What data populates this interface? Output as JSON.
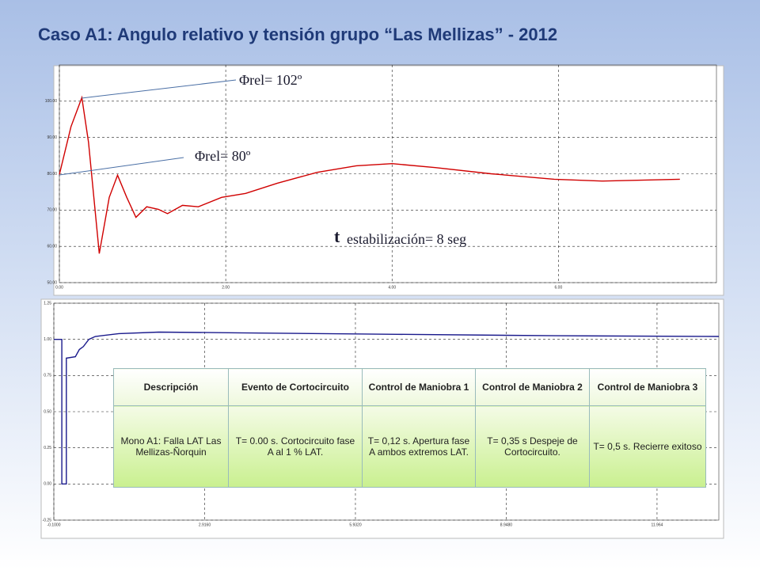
{
  "title": "Caso A1: Angulo relativo y tensión grupo “Las Mellizas” - 2012",
  "chart_data": [
    {
      "type": "line",
      "color": "#d00000",
      "grid": true,
      "x": [
        0,
        0.14,
        0.27,
        0.35,
        0.48,
        0.6,
        0.7,
        0.81,
        0.92,
        1.05,
        1.19,
        1.3,
        1.48,
        1.67,
        1.95,
        2.24,
        2.62,
        3.1,
        3.57,
        4.0,
        4.52,
        5.19,
        5.95,
        6.52,
        7.46
      ],
      "values": [
        79.8,
        93,
        101,
        88.7,
        58,
        73.5,
        79.6,
        73.5,
        68,
        70.9,
        70.2,
        69,
        71.3,
        70.9,
        73.5,
        74.6,
        77.4,
        80.4,
        82.2,
        82.8,
        81.7,
        80,
        78.5,
        78,
        78.5
      ],
      "xlim": [
        0,
        7.9
      ],
      "xticks": [
        {
          "value": 0,
          "label": "0.00"
        },
        {
          "value": 2,
          "label": "2.00"
        },
        {
          "value": 4,
          "label": "4.00"
        },
        {
          "value": 6,
          "label": "6.00"
        }
      ],
      "ylim": [
        50,
        110
      ],
      "yticks": [
        {
          "value": 50,
          "label": "50.00"
        },
        {
          "value": 60,
          "label": "60.00"
        },
        {
          "value": 70,
          "label": "70.00"
        },
        {
          "value": 80,
          "label": "80.00"
        },
        {
          "value": 90,
          "label": "90.00"
        },
        {
          "value": 100,
          "label": "100.00"
        }
      ]
    },
    {
      "type": "line",
      "color": "#1a1a8c",
      "grid": true,
      "x": [
        -0.1,
        0.06,
        0.06,
        0.15,
        0.15,
        0.33,
        0.41,
        0.49,
        0.6,
        0.73,
        1.2,
        2.0,
        3.58,
        6.76,
        9.93,
        13.2
      ],
      "values": [
        1.0,
        1.0,
        0.0,
        0.0,
        0.87,
        0.88,
        0.93,
        0.95,
        1.0,
        1.02,
        1.04,
        1.05,
        1.045,
        1.035,
        1.025,
        1.02
      ],
      "xlim": [
        -0.1,
        13.2
      ],
      "xticks": [
        {
          "value": -0.1,
          "label": "-0.1000"
        },
        {
          "value": 2.916,
          "label": "2.9160"
        },
        {
          "value": 5.932,
          "label": "5.9320"
        },
        {
          "value": 8.948,
          "label": "8.9480"
        },
        11.964
      ],
      "ylim": [
        -0.25,
        1.25
      ],
      "yticks": [
        -0.25,
        {
          "value": 0,
          "label": "0.00"
        },
        0.25,
        {
          "value": 0.5,
          "label": "0.50"
        },
        0.75,
        {
          "value": 1,
          "label": "1.00"
        },
        1.25
      ]
    }
  ],
  "annotations": {
    "phi_peak": "Φrel= 102º",
    "phi_start": "Φrel= 80º",
    "t_symbol": "t",
    "t_text": "estabilización= 8 seg"
  },
  "table": {
    "header": [
      "Descripción",
      "Evento de Cortocircuito",
      "Control de Maniobra  1",
      "Control de Maniobra 2",
      "Control de Maniobra 3"
    ],
    "rows": [
      [
        "Mono A1: Falla LAT Las Mellizas-Ñorquin",
        "T= 0.00 s. Cortocircuito fase A al 1 % LAT.",
        "T= 0,12 s. Apertura fase A ambos extremos LAT.",
        "T= 0,35 s Despeje de Cortocircuito.",
        "T= 0,5 s. Recierre exitoso"
      ]
    ]
  }
}
